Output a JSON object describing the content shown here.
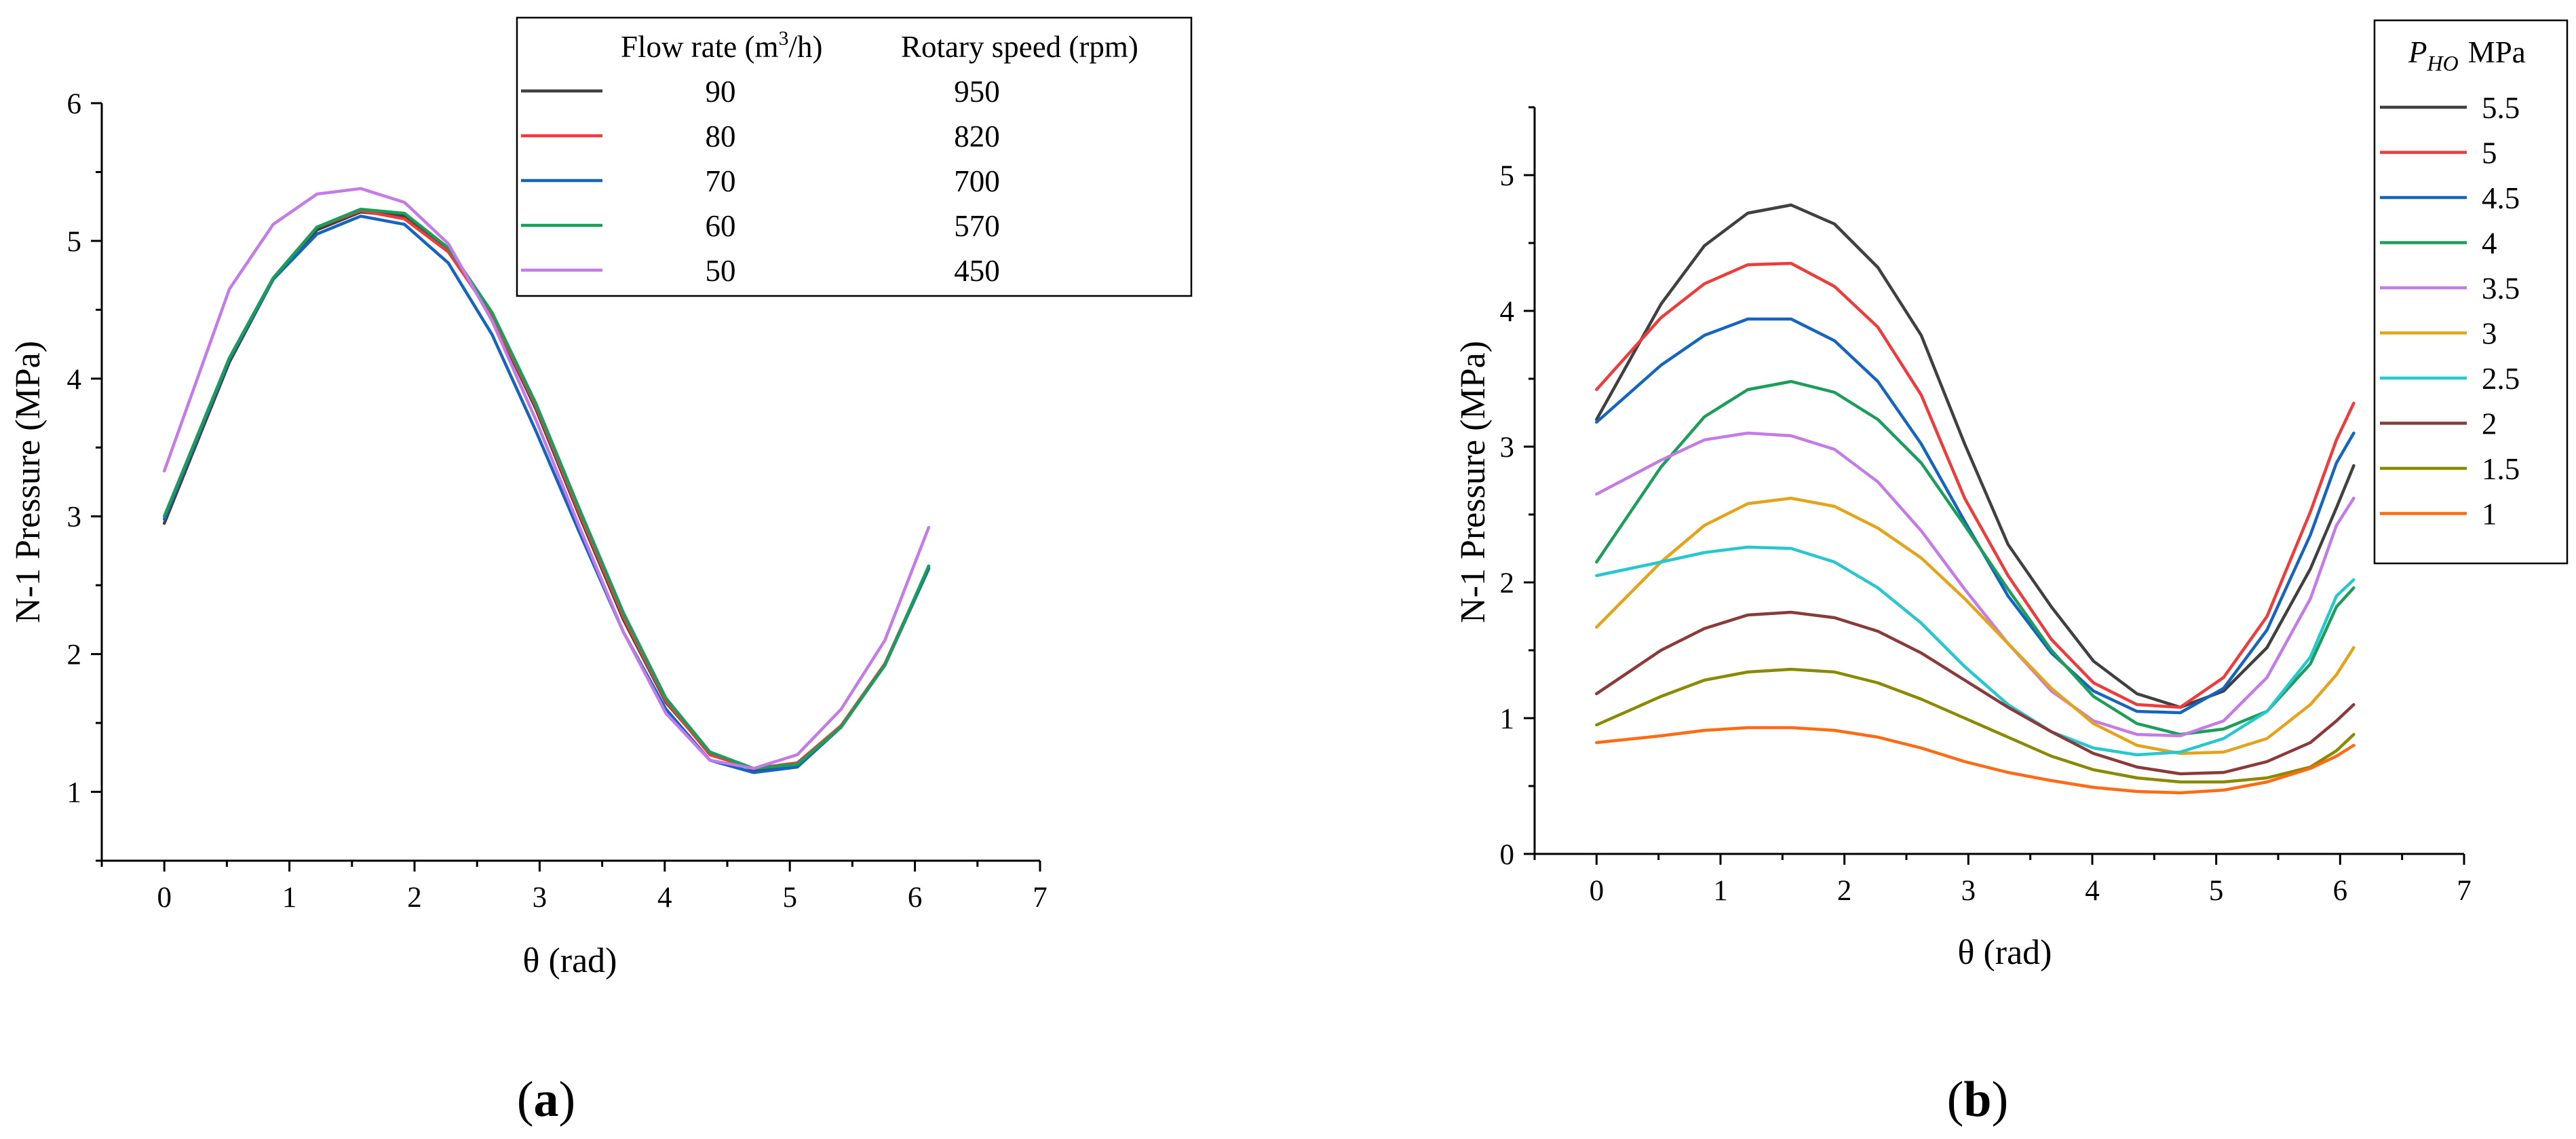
{
  "chart_data": [
    {
      "type": "line",
      "panel_label": {
        "open": "(",
        "letter": "a",
        "close": ")"
      },
      "xlabel": "θ (rad)",
      "ylabel": "N-1 Pressure (MPa)",
      "xlim": [
        -0.5,
        7
      ],
      "ylim": [
        0.5,
        6
      ],
      "xticks": [
        0,
        1,
        2,
        3,
        4,
        5,
        6,
        7
      ],
      "yticks": [
        1,
        2,
        3,
        4,
        5,
        6
      ],
      "xtick_labels": [
        "0",
        "1",
        "2",
        "3",
        "4",
        "5",
        "6",
        "7"
      ],
      "ytick_labels": [
        "1",
        "2",
        "3",
        "4",
        "5",
        "6"
      ],
      "legend": {
        "placement": "top-right",
        "header_flow": {
          "pre": "Flow rate (m",
          "sup": "3",
          "post": "/h)"
        },
        "header_speed": "Rotary speed (rpm)"
      },
      "x": [
        0,
        0.52,
        0.87,
        1.22,
        1.57,
        1.92,
        2.27,
        2.62,
        2.97,
        3.32,
        3.67,
        4.01,
        4.36,
        4.71,
        5.06,
        5.41,
        5.76,
        6.11
      ],
      "series": [
        {
          "name": "90",
          "flow": "90",
          "speed": "950",
          "color": "#404040",
          "values": [
            2.95,
            4.12,
            4.72,
            5.08,
            5.21,
            5.18,
            4.93,
            4.45,
            3.78,
            3.0,
            2.25,
            1.65,
            1.28,
            1.16,
            1.2,
            1.48,
            1.92,
            2.62
          ]
        },
        {
          "name": "80",
          "flow": "80",
          "speed": "820",
          "color": "#ee3b3b",
          "values": [
            3.0,
            4.15,
            4.73,
            5.1,
            5.22,
            5.16,
            4.92,
            4.46,
            3.8,
            3.02,
            2.27,
            1.66,
            1.27,
            1.17,
            1.21,
            1.48,
            1.93,
            2.63
          ]
        },
        {
          "name": "70",
          "flow": "70",
          "speed": "700",
          "color": "#1565c0",
          "values": [
            2.98,
            4.14,
            4.72,
            5.05,
            5.18,
            5.12,
            4.84,
            4.32,
            3.62,
            2.88,
            2.16,
            1.6,
            1.23,
            1.14,
            1.18,
            1.47,
            1.92,
            2.62
          ]
        },
        {
          "name": "60",
          "flow": "60",
          "speed": "570",
          "color": "#1a9e5a",
          "values": [
            3.0,
            4.15,
            4.73,
            5.1,
            5.23,
            5.2,
            4.95,
            4.48,
            3.82,
            3.05,
            2.3,
            1.68,
            1.29,
            1.17,
            1.2,
            1.47,
            1.92,
            2.64
          ]
        },
        {
          "name": "50",
          "flow": "50",
          "speed": "450",
          "color": "#c47be8",
          "values": [
            3.33,
            4.65,
            5.12,
            5.34,
            5.38,
            5.28,
            4.98,
            4.42,
            3.7,
            2.92,
            2.16,
            1.57,
            1.23,
            1.17,
            1.27,
            1.6,
            2.1,
            2.92
          ]
        }
      ]
    },
    {
      "type": "line",
      "panel_label": {
        "open": "(",
        "letter": "b",
        "close": ")"
      },
      "xlabel": "θ (rad)",
      "ylabel": "N-1 Pressure (MPa)",
      "xlim": [
        -0.5,
        7
      ],
      "ylim": [
        0,
        5.5
      ],
      "xticks": [
        0,
        1,
        2,
        3,
        4,
        5,
        6,
        7
      ],
      "yticks": [
        0,
        1,
        2,
        3,
        4,
        5
      ],
      "xtick_labels": [
        "0",
        "1",
        "2",
        "3",
        "4",
        "5",
        "6",
        "7"
      ],
      "ytick_labels": [
        "0",
        "1",
        "2",
        "3",
        "4",
        "5"
      ],
      "legend": {
        "placement": "top-right",
        "header_symbol": "P",
        "header_subscript": "HO",
        "header_unit": "MPa"
      },
      "x": [
        0,
        0.52,
        0.87,
        1.22,
        1.57,
        1.92,
        2.27,
        2.62,
        2.97,
        3.32,
        3.67,
        4.01,
        4.36,
        4.71,
        5.06,
        5.41,
        5.76,
        5.97,
        6.11
      ],
      "series": [
        {
          "name": "5.5",
          "color": "#404040",
          "values": [
            3.2,
            4.05,
            4.48,
            4.72,
            4.78,
            4.64,
            4.32,
            3.82,
            3.02,
            2.28,
            1.82,
            1.42,
            1.18,
            1.08,
            1.2,
            1.52,
            2.1,
            2.55,
            2.86
          ]
        },
        {
          "name": "5",
          "color": "#ee3b3b",
          "values": [
            3.42,
            3.95,
            4.2,
            4.34,
            4.35,
            4.18,
            3.88,
            3.38,
            2.62,
            2.05,
            1.58,
            1.26,
            1.1,
            1.08,
            1.3,
            1.75,
            2.52,
            3.05,
            3.32
          ]
        },
        {
          "name": "4.5",
          "color": "#1565c0",
          "values": [
            3.18,
            3.6,
            3.82,
            3.94,
            3.94,
            3.78,
            3.48,
            3.02,
            2.45,
            1.9,
            1.48,
            1.2,
            1.05,
            1.04,
            1.22,
            1.65,
            2.35,
            2.88,
            3.1
          ]
        },
        {
          "name": "4",
          "color": "#1a9e5a",
          "values": [
            2.15,
            2.85,
            3.22,
            3.42,
            3.48,
            3.4,
            3.2,
            2.88,
            2.42,
            1.95,
            1.5,
            1.16,
            0.96,
            0.88,
            0.92,
            1.05,
            1.4,
            1.82,
            1.96
          ]
        },
        {
          "name": "3.5",
          "color": "#c47be8",
          "values": [
            2.65,
            2.9,
            3.05,
            3.1,
            3.08,
            2.98,
            2.74,
            2.38,
            1.95,
            1.55,
            1.2,
            0.98,
            0.88,
            0.87,
            0.98,
            1.3,
            1.88,
            2.42,
            2.62
          ]
        },
        {
          "name": "3",
          "color": "#e5a319",
          "values": [
            1.67,
            2.15,
            2.42,
            2.58,
            2.62,
            2.56,
            2.4,
            2.18,
            1.88,
            1.55,
            1.22,
            0.96,
            0.8,
            0.74,
            0.75,
            0.85,
            1.1,
            1.32,
            1.52
          ]
        },
        {
          "name": "2.5",
          "color": "#27c7cf",
          "values": [
            2.05,
            2.15,
            2.22,
            2.26,
            2.25,
            2.15,
            1.96,
            1.7,
            1.38,
            1.1,
            0.9,
            0.78,
            0.73,
            0.75,
            0.85,
            1.05,
            1.45,
            1.9,
            2.02
          ]
        },
        {
          "name": "2",
          "color": "#8b3a3a",
          "values": [
            1.18,
            1.5,
            1.66,
            1.76,
            1.78,
            1.74,
            1.64,
            1.48,
            1.28,
            1.08,
            0.9,
            0.74,
            0.64,
            0.59,
            0.6,
            0.68,
            0.82,
            0.98,
            1.1
          ]
        },
        {
          "name": "1.5",
          "color": "#8a8a00",
          "values": [
            0.95,
            1.16,
            1.28,
            1.34,
            1.36,
            1.34,
            1.26,
            1.14,
            1.0,
            0.86,
            0.72,
            0.62,
            0.56,
            0.53,
            0.53,
            0.56,
            0.64,
            0.76,
            0.88
          ]
        },
        {
          "name": "1",
          "color": "#ff6a13",
          "values": [
            0.82,
            0.87,
            0.91,
            0.93,
            0.93,
            0.91,
            0.86,
            0.78,
            0.68,
            0.6,
            0.54,
            0.49,
            0.46,
            0.45,
            0.47,
            0.53,
            0.63,
            0.72,
            0.8
          ]
        }
      ]
    }
  ]
}
